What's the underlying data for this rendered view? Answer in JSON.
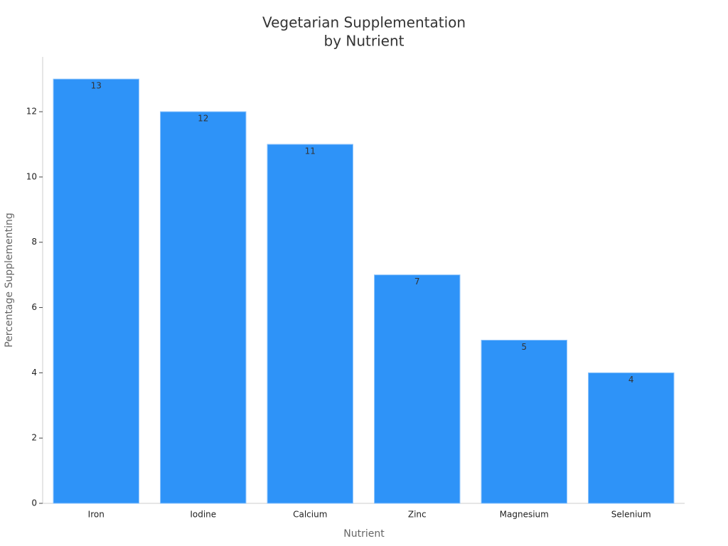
{
  "chart_data": {
    "type": "bar",
    "title": [
      "Vegetarian Supplementation",
      "by Nutrient"
    ],
    "xlabel": "Nutrient",
    "ylabel": "Percentage Supplementing",
    "categories": [
      "Iron",
      "Iodine",
      "Calcium",
      "Zinc",
      "Magnesium",
      "Selenium"
    ],
    "values": [
      13,
      12,
      11,
      7,
      5,
      4
    ],
    "color": "#2e93f8",
    "ylim": [
      0,
      13.68
    ],
    "yticks": [
      0,
      2,
      4,
      6,
      8,
      10,
      12
    ]
  }
}
